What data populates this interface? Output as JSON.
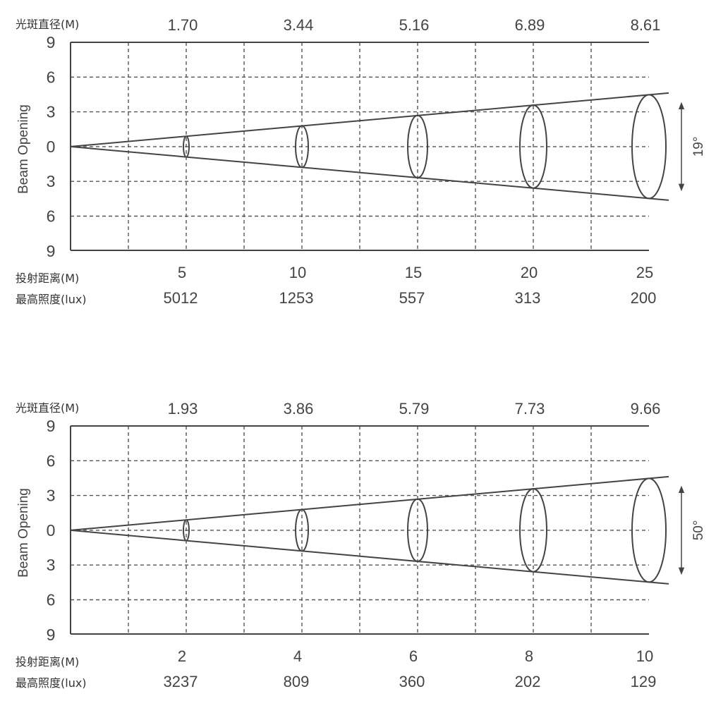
{
  "chart_data": [
    {
      "type": "beam-diagram",
      "header_label": "光斑直径(M)",
      "diameters": [
        "1.70",
        "3.44",
        "5.16",
        "6.89",
        "8.61"
      ],
      "y_label": "Beam Opening",
      "y_ticks": [
        "9",
        "6",
        "3",
        "0",
        "3",
        "6",
        "9"
      ],
      "distance_label": "投射距离(M)",
      "distances": [
        "5",
        "10",
        "15",
        "20",
        "25"
      ],
      "lux_label": "最高照度(lux)",
      "lux": [
        "5012",
        "1253",
        "557",
        "313",
        "200"
      ],
      "angle": "19°"
    },
    {
      "type": "beam-diagram",
      "header_label": "光斑直径(M)",
      "diameters": [
        "1.93",
        "3.86",
        "5.79",
        "7.73",
        "9.66"
      ],
      "y_label": "Beam Opening",
      "y_ticks": [
        "9",
        "6",
        "3",
        "0",
        "3",
        "6",
        "9"
      ],
      "distance_label": "投射距离(M)",
      "distances": [
        "2",
        "4",
        "6",
        "8",
        "10"
      ],
      "lux_label": "最高照度(lux)",
      "lux": [
        "3237",
        "809",
        "360",
        "202",
        "129"
      ],
      "angle": "50°"
    }
  ]
}
